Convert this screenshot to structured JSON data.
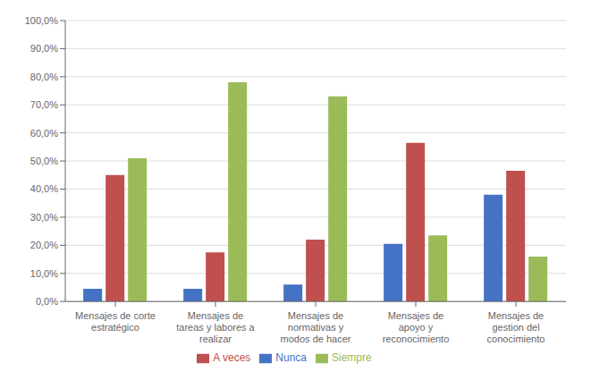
{
  "chart_data": {
    "type": "bar",
    "categories": [
      "Mensajes de corte\nestratégico",
      "Mensajes de\ntareas y labores a\nrealizar",
      "Mensajes de\nnormativas y\nmodos de hacer",
      "Mensajes de\napoyo y\nreconocimiento",
      "Mensajes de\ngestion del\nconocimiento"
    ],
    "series": [
      {
        "name": "Nunca",
        "color": "#4472C4",
        "values": [
          4.5,
          4.5,
          6.0,
          20.5,
          38.0
        ]
      },
      {
        "name": "A veces",
        "color": "#C0504D",
        "values": [
          45.0,
          17.5,
          22.0,
          56.5,
          46.5
        ]
      },
      {
        "name": "Siempre",
        "color": "#9BBB59",
        "values": [
          51.0,
          78.0,
          73.0,
          23.5,
          16.0
        ]
      }
    ],
    "ylim": [
      0,
      100
    ],
    "yticks": [
      {
        "value": 0,
        "label": "0,0%"
      },
      {
        "value": 10,
        "label": "10,0%"
      },
      {
        "value": 20,
        "label": "20,0%"
      },
      {
        "value": 30,
        "label": "30,0%"
      },
      {
        "value": 40,
        "label": "40,0%"
      },
      {
        "value": 50,
        "label": "50,0%"
      },
      {
        "value": 60,
        "label": "60,0%"
      },
      {
        "value": 70,
        "label": "70,0%"
      },
      {
        "value": 80,
        "label": "80,0%"
      },
      {
        "value": 90,
        "label": "90,0%"
      },
      {
        "value": 100,
        "label": "100,0%"
      }
    ],
    "grid": true,
    "legend": "bottom"
  }
}
